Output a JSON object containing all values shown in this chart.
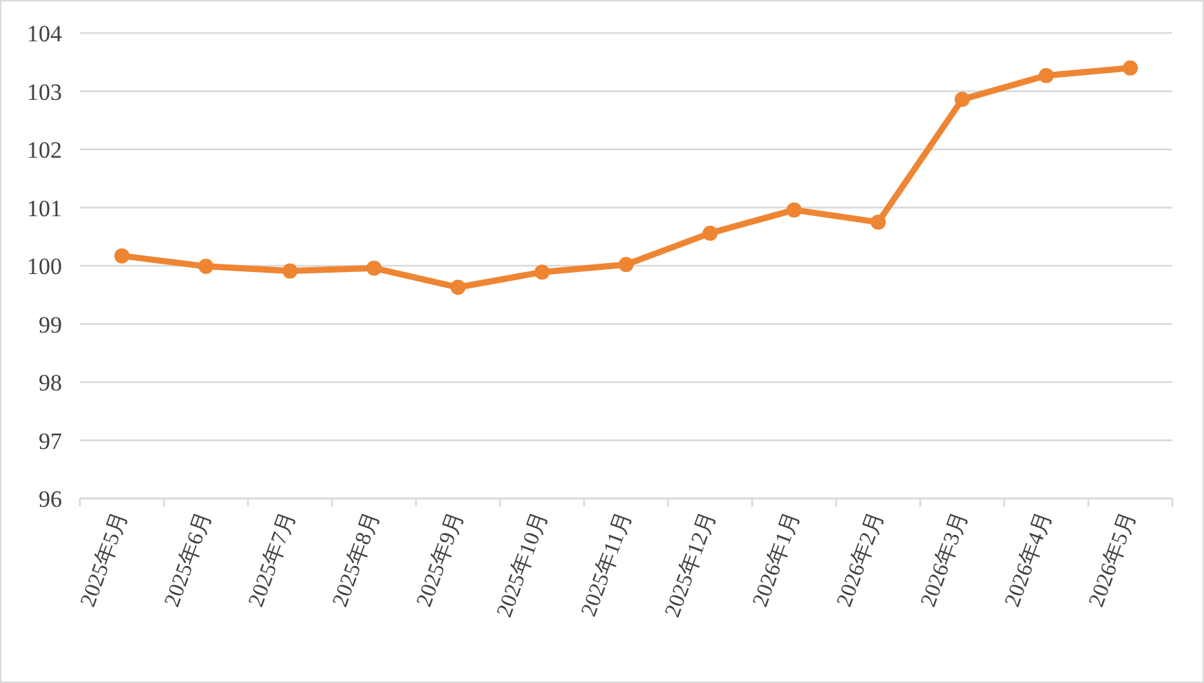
{
  "chart_data": {
    "type": "line",
    "categories": [
      "2025年5月",
      "2025年6月",
      "2025年7月",
      "2025年8月",
      "2025年9月",
      "2025年10月",
      "2025年11月",
      "2025年12月",
      "2026年1月",
      "2026年2月",
      "2026年3月",
      "2026年4月",
      "2026年5月"
    ],
    "values": [
      100.17,
      99.99,
      99.91,
      99.96,
      99.63,
      99.89,
      100.02,
      100.56,
      100.96,
      100.75,
      102.86,
      103.27,
      103.4
    ],
    "color": "#ee8533",
    "marker": "circle",
    "line_style": "solid",
    "grid": "y",
    "ylim": [
      96,
      104
    ],
    "yticks": [
      96,
      97,
      98,
      99,
      100,
      101,
      102,
      103,
      104
    ]
  }
}
